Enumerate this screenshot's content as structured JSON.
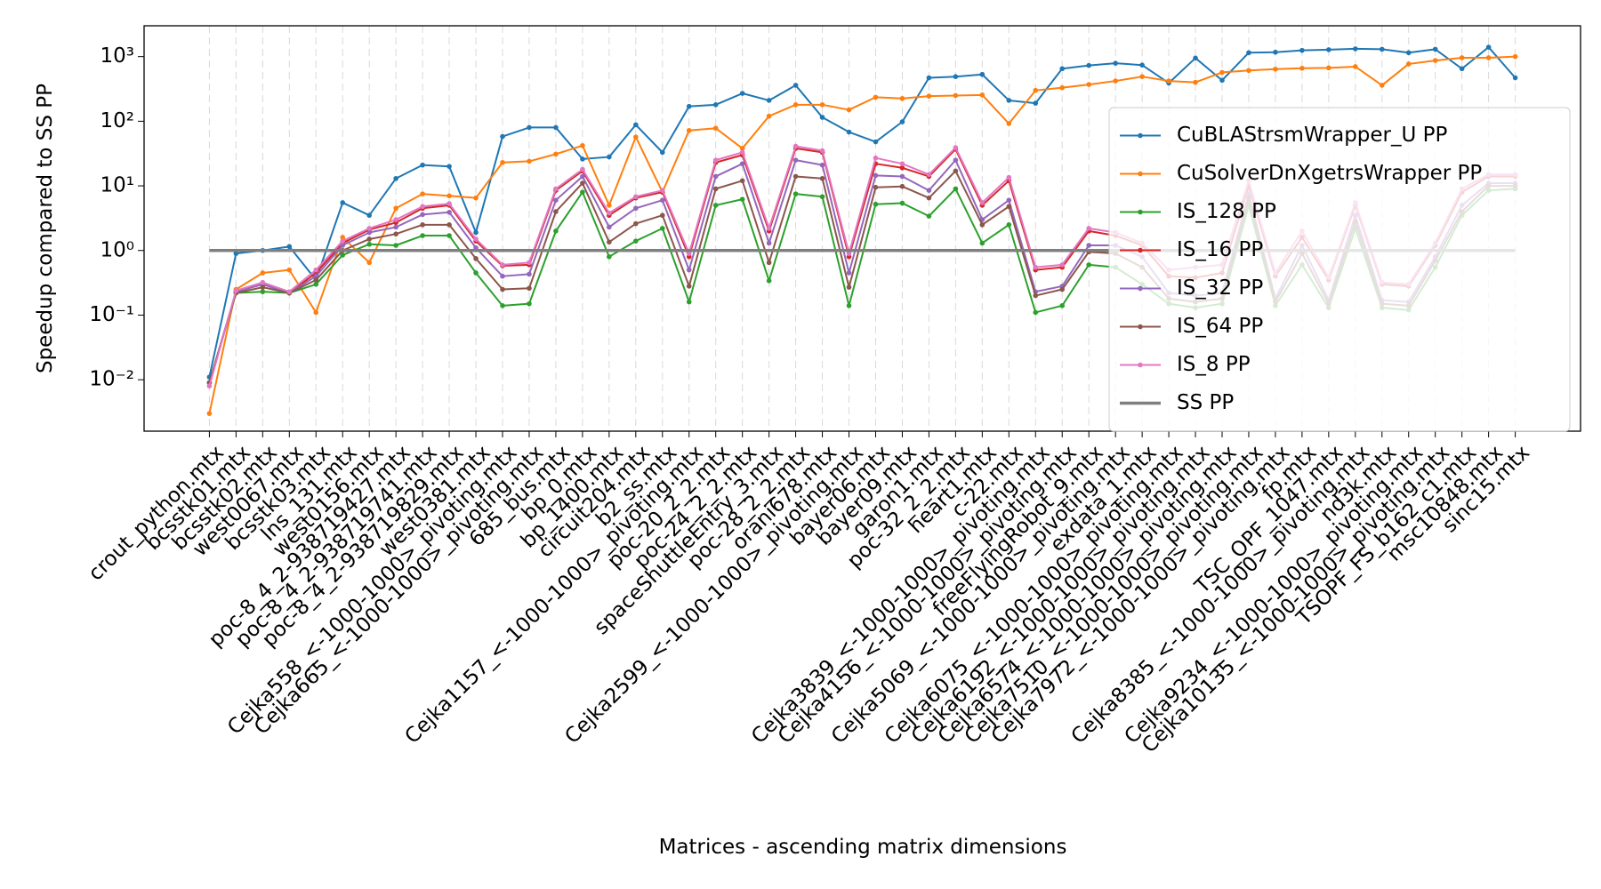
{
  "chart_data": {
    "type": "line",
    "x_label": "Matrices - ascending matrix dimensions",
    "y_label": "Speedup compared to SS PP",
    "yscale": "log",
    "grid": "x",
    "legend": "upper right",
    "ylim": [
      0.0016,
      3000
    ],
    "yticks": [
      {
        "value": 0.01,
        "label": "10⁻²"
      },
      {
        "value": 0.1,
        "label": "10⁻¹"
      },
      {
        "value": 1,
        "label": "10⁰"
      },
      {
        "value": 10,
        "label": "10¹"
      },
      {
        "value": 100,
        "label": "10²"
      },
      {
        "value": 1000,
        "label": "10³"
      }
    ],
    "categories": [
      "crout_python.mtx",
      "bcsstk01.mtx",
      "bcsstk02.mtx",
      "west0067.mtx",
      "bcsstk03.mtx",
      "lns_131.mtx",
      "west0156.mtx",
      "poc-8_4_2-938719427.mtx",
      "poc-8_4_2-938719741.mtx",
      "poc-8_4_2-938719829.mtx",
      "west0381.mtx",
      "Cejka558_<-1000-1000>_pivoting.mtx",
      "Cejka665_<-1000-1000>_pivoting.mtx",
      "685_bus.mtx",
      "bp_0.mtx",
      "bp_1400.mtx",
      "circuit204.mtx",
      "b2_ss.mtx",
      "Cejka1157_<-1000-1000>_pivoting.mtx",
      "poc-20_2_2.mtx",
      "poc-24_2_2.mtx",
      "spaceShuttleEntry_3.mtx",
      "poc-28_2_2.mtx",
      "orani678.mtx",
      "Cejka2599_<-1000-1000>_pivoting.mtx",
      "bayer06.mtx",
      "bayer09.mtx",
      "garon1.mtx",
      "poc-32_2_2.mtx",
      "heart1.mtx",
      "c-22.mtx",
      "Cejka3839_<-1000-1000>_pivoting.mtx",
      "Cejka4156_<-1000-1000>_pivoting.mtx",
      "freeFlyingRobot_9.mtx",
      "Cejka5069_<-1000-1000>_pivoting.mtx",
      "exdata_1.mtx",
      "Cejka6075_<-1000-1000>_pivoting.mtx",
      "Cejka6192_<-1000-1000>_pivoting.mtx",
      "Cejka6574_<-1000-1000>_pivoting.mtx",
      "Cejka7510_<-1000-1000>_pivoting.mtx",
      "Cejka7972_<-1000-1000>_pivoting.mtx",
      "fp.mtx",
      "TSC_OPF_1047.mtx",
      "Cejka8385_<-1000-1000>_pivoting.mtx",
      "nd3k.mtx",
      "Cejka9234_<-1000-1000>_pivoting.mtx",
      "Cejka10135_<-1000-1000>_pivoting.mtx",
      "TSOPF_FS_b162_c1.mtx",
      "msc10848.mtx",
      "sinc15.mtx"
    ],
    "series": [
      {
        "name": "CuBLAStrsmWrapper_U PP",
        "color": "#1f77b4",
        "values": [
          0.011,
          0.9,
          1.0,
          1.15,
          0.35,
          5.5,
          3.5,
          13,
          21,
          20,
          1.9,
          58,
          80,
          80,
          26,
          28,
          88,
          33,
          170,
          180,
          270,
          210,
          360,
          115,
          68,
          48,
          98,
          470,
          490,
          530,
          210,
          190,
          650,
          730,
          790,
          740,
          390,
          950,
          430,
          1150,
          1170,
          1250,
          1280,
          1320,
          1300,
          1150,
          1300,
          650,
          1400,
          470
        ]
      },
      {
        "name": "CuSolverDnXgetrsWrapper PP",
        "color": "#ff7f0e",
        "values": [
          0.003,
          0.25,
          0.45,
          0.5,
          0.11,
          1.6,
          0.65,
          4.5,
          7.5,
          7,
          6.5,
          23,
          24,
          31,
          42,
          5,
          57,
          8,
          72,
          78,
          38,
          120,
          180,
          180,
          150,
          235,
          225,
          245,
          250,
          255,
          92,
          300,
          330,
          370,
          420,
          490,
          420,
          400,
          570,
          610,
          640,
          660,
          670,
          700,
          360,
          770,
          870,
          960,
          960,
          1000
        ]
      },
      {
        "name": "IS_128 PP",
        "color": "#2ca02c",
        "values": [
          0.009,
          0.22,
          0.23,
          0.22,
          0.3,
          0.85,
          1.25,
          1.2,
          1.7,
          1.7,
          0.45,
          0.14,
          0.15,
          2.0,
          8.0,
          0.8,
          1.4,
          2.2,
          0.16,
          5,
          6.2,
          0.34,
          7.5,
          6.8,
          0.14,
          5.2,
          5.4,
          3.4,
          9,
          1.3,
          2.5,
          0.11,
          0.14,
          0.6,
          0.55,
          0.3,
          0.15,
          0.13,
          0.15,
          5,
          0.14,
          0.6,
          0.13,
          2.2,
          0.13,
          0.12,
          0.55,
          3.5,
          8.5,
          9
        ]
      },
      {
        "name": "IS_16 PP",
        "color": "#d62728",
        "values": [
          0.009,
          0.23,
          0.3,
          0.22,
          0.45,
          1.3,
          2.1,
          2.7,
          4.5,
          5,
          1.4,
          0.58,
          0.6,
          8.5,
          17,
          3.5,
          6.5,
          8,
          0.8,
          23,
          30,
          2,
          38,
          33,
          0.8,
          22,
          19,
          14,
          37,
          5,
          12,
          0.5,
          0.55,
          2,
          1.7,
          1.2,
          0.4,
          0.38,
          0.45,
          10,
          0.4,
          1.6,
          0.35,
          5,
          0.3,
          0.28,
          1.2,
          8,
          14,
          14
        ]
      },
      {
        "name": "IS_32 PP",
        "color": "#9467bd",
        "values": [
          0.009,
          0.23,
          0.3,
          0.22,
          0.4,
          1.2,
          1.9,
          2.3,
          3.6,
          3.9,
          1.1,
          0.4,
          0.43,
          6,
          14,
          2.3,
          4.5,
          6,
          0.5,
          14,
          22,
          1.3,
          25,
          21,
          0.45,
          14.5,
          14,
          8.5,
          25,
          3,
          6,
          0.23,
          0.28,
          1.2,
          1.2,
          0.8,
          0.22,
          0.2,
          0.22,
          7.5,
          0.18,
          1.2,
          0.17,
          3.5,
          0.17,
          0.16,
          0.8,
          5,
          11,
          11
        ]
      },
      {
        "name": "IS_64 PP",
        "color": "#8c564b",
        "values": [
          0.009,
          0.22,
          0.27,
          0.22,
          0.35,
          1,
          1.5,
          1.8,
          2.5,
          2.5,
          0.75,
          0.25,
          0.26,
          4,
          11,
          1.35,
          2.6,
          3.5,
          0.28,
          9,
          12,
          0.65,
          14,
          13,
          0.27,
          9.5,
          9.8,
          6.5,
          17,
          2.5,
          4.8,
          0.2,
          0.25,
          0.95,
          0.9,
          0.55,
          0.18,
          0.16,
          0.18,
          6.5,
          0.16,
          0.9,
          0.15,
          2.8,
          0.15,
          0.14,
          0.7,
          4,
          10,
          10
        ]
      },
      {
        "name": "IS_8 PP",
        "color": "#e377c2",
        "values": [
          0.008,
          0.24,
          0.32,
          0.23,
          0.5,
          1.4,
          2.2,
          3,
          4.8,
          5.3,
          1.5,
          0.6,
          0.65,
          9,
          18,
          3.8,
          6.8,
          8.5,
          0.9,
          25,
          33,
          2.2,
          41,
          35,
          0.9,
          27,
          22,
          15,
          39,
          5.5,
          13.5,
          0.55,
          0.6,
          2.2,
          1.9,
          1.3,
          0.5,
          0.55,
          0.6,
          12,
          0.45,
          2,
          0.38,
          5.5,
          0.32,
          0.3,
          1.3,
          9,
          15,
          15
        ]
      },
      {
        "name": "SS PP",
        "color": "#7f7f7f",
        "markers": false,
        "values": [
          1,
          1,
          1,
          1,
          1,
          1,
          1,
          1,
          1,
          1,
          1,
          1,
          1,
          1,
          1,
          1,
          1,
          1,
          1,
          1,
          1,
          1,
          1,
          1,
          1,
          1,
          1,
          1,
          1,
          1,
          1,
          1,
          1,
          1,
          1,
          1,
          1,
          1,
          1,
          1,
          1,
          1,
          1,
          1,
          1,
          1,
          1,
          1,
          1,
          1
        ]
      }
    ]
  }
}
